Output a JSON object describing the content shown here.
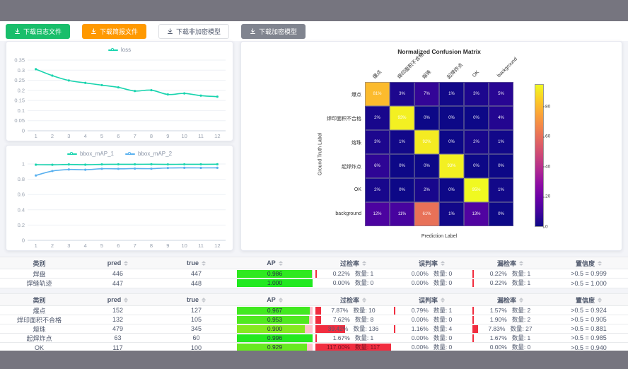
{
  "toolbar": {
    "buttons": [
      {
        "name": "download-log-button",
        "label": "下载日志文件",
        "style": "success"
      },
      {
        "name": "download-report-button",
        "label": "下载简报文件",
        "style": "warning"
      },
      {
        "name": "download-plain-model-button",
        "label": "下载非加密模型",
        "style": "default"
      },
      {
        "name": "download-encrypted-model-button",
        "label": "下载加密模型",
        "style": "gray"
      }
    ]
  },
  "chart_data": [
    {
      "id": "loss",
      "type": "line",
      "x": [
        1,
        2,
        3,
        4,
        5,
        6,
        7,
        8,
        9,
        10,
        11,
        12
      ],
      "series": [
        {
          "name": "loss",
          "color": "#19d4ae",
          "values": [
            0.305,
            0.273,
            0.249,
            0.237,
            0.226,
            0.215,
            0.197,
            0.201,
            0.18,
            0.185,
            0.174,
            0.169
          ]
        }
      ],
      "ylim": [
        0,
        0.35
      ],
      "ystep": 0.05,
      "grid": true,
      "legend_position": "top"
    },
    {
      "id": "bbox_map",
      "type": "line",
      "x": [
        1,
        2,
        3,
        4,
        5,
        6,
        7,
        8,
        9,
        10,
        11,
        12
      ],
      "series": [
        {
          "name": "bbox_mAP_1",
          "color": "#19d4ae",
          "values": [
            0.991,
            0.99,
            0.994,
            0.991,
            0.995,
            0.996,
            0.996,
            0.997,
            0.995,
            0.996,
            0.996,
            0.997
          ]
        },
        {
          "name": "bbox_mAP_2",
          "color": "#5ab1ef",
          "values": [
            0.85,
            0.908,
            0.928,
            0.925,
            0.938,
            0.937,
            0.94,
            0.939,
            0.948,
            0.95,
            0.949,
            0.95
          ]
        }
      ],
      "ylim": [
        0,
        1
      ],
      "ystep": 0.2,
      "grid": true,
      "legend_position": "top"
    },
    {
      "id": "confusion",
      "type": "heatmap",
      "title": "Normalized Confusion Matrix",
      "xlabel": "Prediction Label",
      "ylabel": "Ground Truth Label",
      "labels": [
        "爆点",
        "焊印面积不合格",
        "熔珠",
        "起焊炸点",
        "OK",
        "background"
      ],
      "matrix_percent": [
        [
          81,
          3,
          7,
          1,
          3,
          5
        ],
        [
          2,
          93,
          0,
          0,
          0,
          4
        ],
        [
          3,
          1,
          92,
          0,
          2,
          1
        ],
        [
          6,
          0,
          0,
          93,
          0,
          0
        ],
        [
          2,
          0,
          2,
          0,
          95,
          1
        ],
        [
          12,
          11,
          61,
          1,
          13,
          0
        ]
      ],
      "colormap": "plasma",
      "vmax": 95,
      "colorbar_ticks": [
        0,
        20,
        40,
        60,
        80
      ]
    }
  ],
  "tables": {
    "count_label": "数量:",
    "headers": [
      {
        "label": "类别",
        "sortable": false
      },
      {
        "label": "pred",
        "sortable": true
      },
      {
        "label": "true",
        "sortable": true
      },
      {
        "label": "AP",
        "sortable": true
      },
      {
        "label": "过检率",
        "sortable": true
      },
      {
        "label": "误判率",
        "sortable": true
      },
      {
        "label": "漏检率",
        "sortable": true
      },
      {
        "label": "置信度",
        "sortable": true
      }
    ],
    "table1": [
      {
        "class": "焊盘",
        "pred": "446",
        "true": "447",
        "ap": "0.986",
        "over_pct": "0.22%",
        "over_count": "1",
        "over_value": 0.22,
        "mis_pct": "0.00%",
        "mis_count": "0",
        "mis_value": 0,
        "miss_pct": "0.22%",
        "miss_count": "1",
        "miss_value": 0.22,
        "conf": ">0.5 = 0.999"
      },
      {
        "class": "焊缝轨迹",
        "pred": "447",
        "true": "448",
        "ap": "1.000",
        "over_pct": "0.00%",
        "over_count": "0",
        "over_value": 0,
        "mis_pct": "0.00%",
        "mis_count": "0",
        "mis_value": 0,
        "miss_pct": "0.22%",
        "miss_count": "1",
        "miss_value": 0.22,
        "conf": ">0.5 = 1.000"
      }
    ],
    "table2": [
      {
        "class": "爆点",
        "pred": "152",
        "true": "127",
        "ap": "0.967",
        "over_pct": "7.87%",
        "over_count": "10",
        "over_value": 7.87,
        "mis_pct": "0.79%",
        "mis_count": "1",
        "mis_value": 0.79,
        "miss_pct": "1.57%",
        "miss_count": "2",
        "miss_value": 1.57,
        "conf": ">0.5 = 0.924"
      },
      {
        "class": "焊印面积不合格",
        "pred": "132",
        "true": "105",
        "ap": "0.953",
        "over_pct": "7.62%",
        "over_count": "8",
        "over_value": 7.62,
        "mis_pct": "0.00%",
        "mis_count": "0",
        "mis_value": 0,
        "miss_pct": "1.90%",
        "miss_count": "2",
        "miss_value": 1.9,
        "conf": ">0.5 = 0.905"
      },
      {
        "class": "熔珠",
        "pred": "479",
        "true": "345",
        "ap": "0.900",
        "over_pct": "39.42%",
        "over_count": "136",
        "over_value": 39.42,
        "mis_pct": "1.16%",
        "mis_count": "4",
        "mis_value": 1.16,
        "miss_pct": "7.83%",
        "miss_count": "27",
        "miss_value": 7.83,
        "conf": ">0.5 = 0.881"
      },
      {
        "class": "起焊炸点",
        "pred": "63",
        "true": "60",
        "ap": "0.996",
        "over_pct": "1.67%",
        "over_count": "1",
        "over_value": 1.67,
        "mis_pct": "0.00%",
        "mis_count": "0",
        "mis_value": 0,
        "miss_pct": "1.67%",
        "miss_count": "1",
        "miss_value": 1.67,
        "conf": ">0.5 = 0.985"
      },
      {
        "class": "OK",
        "pred": "117",
        "true": "100",
        "ap": "0.929",
        "over_pct": "117.00%",
        "over_count": "117",
        "over_value": 117.0,
        "mis_pct": "0.00%",
        "mis_count": "0",
        "mis_value": 0,
        "miss_pct": "0.00%",
        "miss_count": "0",
        "miss_value": 0,
        "conf": ">0.5 = 0.940"
      }
    ]
  },
  "colors": {
    "teal": "#19d4ae",
    "blue": "#5ab1ef",
    "success": "#19be6b",
    "warning": "#ff9900",
    "gray_button": "#80848f",
    "rate_bar_red": "#f12d3f",
    "ap_track_pink": "#ffc2cb"
  }
}
